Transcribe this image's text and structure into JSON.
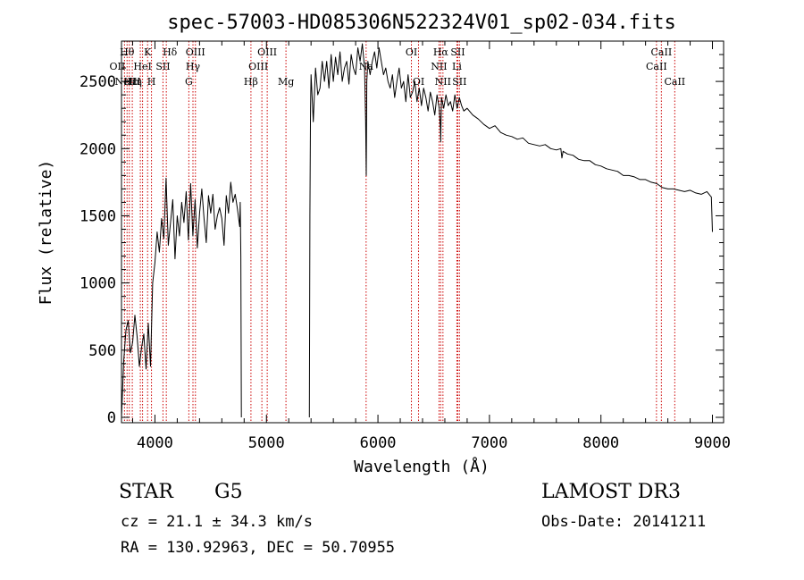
{
  "chart_data": {
    "type": "line",
    "title": "spec-57003-HD085306N522324V01_sp02-034.fits",
    "xlabel": "Wavelength (Å)",
    "ylabel": "Flux (relative)",
    "xlim": [
      3700,
      9100
    ],
    "ylim": [
      -40,
      2800
    ],
    "x_ticks": [
      4000,
      5000,
      6000,
      7000,
      8000,
      9000
    ],
    "x_tick_labels": [
      "4000",
      "5000",
      "6000",
      "7000",
      "8000",
      "9000"
    ],
    "y_ticks": [
      0,
      500,
      1000,
      1500,
      2000,
      2500
    ],
    "y_tick_labels": [
      "0",
      "500",
      "1000",
      "1500",
      "2000",
      "2500"
    ],
    "grid": false,
    "series": [
      {
        "name": "spectrum",
        "segments": [
          {
            "x": [
              3700,
              3720,
              3740,
              3760,
              3780,
              3800,
              3820,
              3840,
              3860,
              3880,
              3900,
              3920,
              3940,
              3960,
              3980,
              4000,
              4020,
              4040,
              4060,
              4080,
              4100,
              4120,
              4140,
              4160,
              4180,
              4200,
              4220,
              4240,
              4260,
              4280,
              4300,
              4320,
              4340,
              4360,
              4380,
              4400,
              4420,
              4440,
              4460,
              4480,
              4500,
              4520,
              4540,
              4560,
              4580,
              4600,
              4620,
              4640,
              4660,
              4680,
              4700,
              4720,
              4740,
              4760,
              4765,
              4770,
              4775
            ],
            "y": [
              0,
              420,
              650,
              720,
              480,
              560,
              760,
              600,
              380,
              520,
              620,
              360,
              700,
              380,
              1000,
              1150,
              1380,
              1230,
              1480,
              1330,
              1780,
              1280,
              1450,
              1620,
              1180,
              1500,
              1350,
              1600,
              1450,
              1680,
              1320,
              1740,
              1350,
              1620,
              1260,
              1520,
              1700,
              1480,
              1300,
              1650,
              1520,
              1660,
              1400,
              1500,
              1560,
              1480,
              1280,
              1650,
              1520,
              1750,
              1600,
              1660,
              1550,
              1420,
              1600,
              1200,
              0
            ]
          },
          {
            "x": [
              5385,
              5390,
              5395,
              5400,
              5420,
              5440,
              5460,
              5480,
              5500,
              5520,
              5540,
              5560,
              5580,
              5600,
              5620,
              5640,
              5660,
              5680,
              5700,
              5720,
              5740,
              5760,
              5780,
              5800,
              5820,
              5840,
              5860,
              5880,
              5890,
              5895,
              5900,
              5910,
              5930,
              5950,
              5970,
              5990,
              6010,
              6030,
              6050,
              6070,
              6090,
              6110,
              6130,
              6150,
              6170,
              6190,
              6210,
              6230,
              6250,
              6270,
              6290,
              6310,
              6330,
              6350,
              6370,
              6390,
              6410,
              6430,
              6450,
              6470,
              6490,
              6510,
              6530,
              6550,
              6560,
              6563,
              6570,
              6590,
              6610,
              6630,
              6650,
              6670,
              6690,
              6710,
              6730,
              6750,
              6770,
              6800,
              6850,
              6900,
              6950,
              7000,
              7050,
              7100,
              7150,
              7200,
              7250,
              7300,
              7350,
              7400,
              7450,
              7500,
              7550,
              7600,
              7640,
              7650,
              7660,
              7700,
              7750,
              7800,
              7850,
              7900,
              7950,
              8000,
              8050,
              8100,
              8150,
              8200,
              8250,
              8300,
              8350,
              8400,
              8450,
              8500,
              8550,
              8600,
              8650,
              8700,
              8750,
              8800,
              8850,
              8900,
              8950,
              8980,
              8990,
              9000
            ],
            "y": [
              0,
              1500,
              2300,
              2550,
              2200,
              2600,
              2400,
              2450,
              2650,
              2500,
              2650,
              2450,
              2700,
              2500,
              2680,
              2550,
              2720,
              2500,
              2600,
              2650,
              2480,
              2700,
              2600,
              2550,
              2750,
              2650,
              2780,
              2600,
              2200,
              1800,
              2500,
              2650,
              2550,
              2650,
              2720,
              2600,
              2750,
              2650,
              2550,
              2600,
              2500,
              2450,
              2550,
              2380,
              2500,
              2600,
              2450,
              2500,
              2350,
              2550,
              2380,
              2420,
              2500,
              2350,
              2450,
              2320,
              2450,
              2380,
              2280,
              2420,
              2350,
              2250,
              2400,
              2300,
              2150,
              2050,
              2380,
              2300,
              2400,
              2320,
              2350,
              2280,
              2400,
              2300,
              2380,
              2320,
              2280,
              2300,
              2250,
              2220,
              2180,
              2150,
              2170,
              2120,
              2100,
              2090,
              2070,
              2080,
              2040,
              2030,
              2020,
              2030,
              2000,
              1990,
              2000,
              1930,
              1980,
              1960,
              1950,
              1920,
              1910,
              1910,
              1880,
              1870,
              1850,
              1840,
              1830,
              1800,
              1800,
              1790,
              1770,
              1770,
              1750,
              1740,
              1710,
              1700,
              1700,
              1690,
              1680,
              1690,
              1670,
              1660,
              1680,
              1650,
              1640,
              1380
            ]
          }
        ]
      }
    ],
    "lines": [
      {
        "wavelength": 3727,
        "labels": [
          "OII"
        ],
        "row": 1,
        "dx": -8
      },
      {
        "wavelength": 3750,
        "labels": [
          "Hθ"
        ],
        "row": 0,
        "dx": 0
      },
      {
        "wavelength": 3770,
        "labels": [
          "Hη"
        ],
        "row": 2,
        "dx": 6
      },
      {
        "wavelength": 3797,
        "labels": [
          "Hε"
        ],
        "row": 2,
        "dx": -2
      },
      {
        "wavelength": 3869,
        "labels": [
          "NeIII"
        ],
        "row": 2,
        "dx": -14
      },
      {
        "wavelength": 3889,
        "labels": [
          "HeI"
        ],
        "row": 1,
        "dx": 0
      },
      {
        "wavelength": 3934,
        "labels": [
          "K"
        ],
        "row": 0,
        "dx": 0
      },
      {
        "wavelength": 3969,
        "labels": [
          "H"
        ],
        "row": 2,
        "dx": 0
      },
      {
        "wavelength": 4072,
        "labels": [
          "SII"
        ],
        "row": 1,
        "dx": 0
      },
      {
        "wavelength": 4102,
        "labels": [
          "Hδ"
        ],
        "row": 0,
        "dx": 4
      },
      {
        "wavelength": 4304,
        "labels": [
          "G"
        ],
        "row": 2,
        "dx": 0
      },
      {
        "wavelength": 4341,
        "labels": [
          "Hγ"
        ],
        "row": 1,
        "dx": 0
      },
      {
        "wavelength": 4363,
        "labels": [
          "OIII"
        ],
        "row": 0,
        "dx": 0
      },
      {
        "wavelength": 4861,
        "labels": [
          "Hβ"
        ],
        "row": 2,
        "dx": 0
      },
      {
        "wavelength": 4959,
        "labels": [
          "OIII"
        ],
        "row": 1,
        "dx": -4
      },
      {
        "wavelength": 5007,
        "labels": [
          "OIII"
        ],
        "row": 0,
        "dx": 0
      },
      {
        "wavelength": 5175,
        "labels": [
          "Mg"
        ],
        "row": 2,
        "dx": 0
      },
      {
        "wavelength": 5894,
        "labels": [
          "Na"
        ],
        "row": 1,
        "dx": 0
      },
      {
        "wavelength": 6300,
        "labels": [
          "OI"
        ],
        "row": 0,
        "dx": 0
      },
      {
        "wavelength": 6364,
        "labels": [
          "OI"
        ],
        "row": 2,
        "dx": 0
      },
      {
        "wavelength": 6548,
        "labels": [
          "NII"
        ],
        "row": 1,
        "dx": 0
      },
      {
        "wavelength": 6563,
        "labels": [
          "Hα"
        ],
        "row": 0,
        "dx": 0
      },
      {
        "wavelength": 6583,
        "labels": [
          "NII"
        ],
        "row": 2,
        "dx": 0
      },
      {
        "wavelength": 6708,
        "labels": [
          "Li"
        ],
        "row": 1,
        "dx": 0
      },
      {
        "wavelength": 6716,
        "labels": [
          "SII"
        ],
        "row": 0,
        "dx": 0
      },
      {
        "wavelength": 6731,
        "labels": [
          "SII"
        ],
        "row": 2,
        "dx": 0
      },
      {
        "wavelength": 8498,
        "labels": [
          "CaII"
        ],
        "row": 1,
        "dx": 0
      },
      {
        "wavelength": 8542,
        "labels": [
          "CaII"
        ],
        "row": 0,
        "dx": 0
      },
      {
        "wavelength": 8662,
        "labels": [
          "CaII"
        ],
        "row": 2,
        "dx": 0
      }
    ],
    "colors": {
      "spectrum": "#000000",
      "lines": "#cc0000",
      "axes": "#000000"
    }
  },
  "info": {
    "class_label": "STAR",
    "subclass_label": "G5",
    "survey": "LAMOST DR3",
    "cz": "cz = 21.1 ± 34.3 km/s",
    "obs_date": "Obs-Date: 20141211",
    "radec": "RA = 130.92963, DEC =  50.70955"
  }
}
